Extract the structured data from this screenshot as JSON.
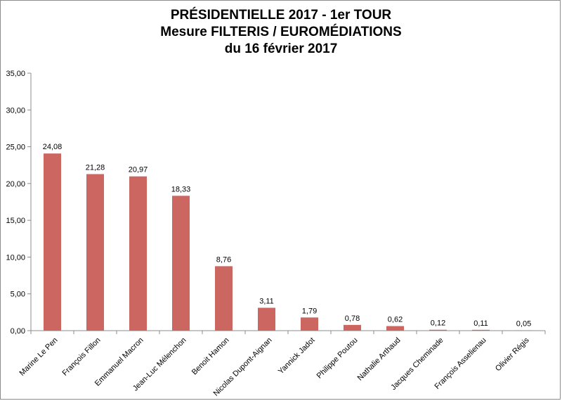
{
  "title_lines": [
    "PRÉSIDENTIELLE 2017 - 1er TOUR",
    "Mesure FILTERIS / EUROMÉDIATIONS",
    "du 16 février 2017"
  ],
  "chart_data": {
    "type": "bar",
    "title": "PRÉSIDENTIELLE 2017 - 1er TOUR / Mesure FILTERIS / EUROMÉDIATIONS / du 16 février 2017",
    "categories": [
      "Marine Le Pen",
      "François Fillon",
      "Emmanuel Macron",
      "Jean-Luc Mélenchon",
      "Benoit Hamon",
      "Nicolas Dupont-Aignan",
      "Yannick Jadot",
      "Philippe Poutou",
      "Nathalie Arthaud",
      "Jacques Cheminade",
      "François Asselienau",
      "Olivier Régis"
    ],
    "values": [
      24.08,
      21.28,
      20.97,
      18.33,
      8.76,
      3.11,
      1.79,
      0.78,
      0.62,
      0.12,
      0.11,
      0.05
    ],
    "value_labels": [
      "24,08",
      "21,28",
      "20,97",
      "18,33",
      "8,76",
      "3,11",
      "1,79",
      "0,78",
      "0,62",
      "0,12",
      "0,11",
      "0,05"
    ],
    "ylim": [
      0,
      35
    ],
    "yticks": [
      0,
      5,
      10,
      15,
      20,
      25,
      30,
      35
    ],
    "ytick_labels": [
      "0,00",
      "5,00",
      "10,00",
      "15,00",
      "20,00",
      "25,00",
      "30,00",
      "35,00"
    ],
    "bar_color": "#cc6660",
    "axis_color": "#8c8c8c",
    "grid": false,
    "legend": "none",
    "xlabel": "",
    "ylabel": ""
  }
}
